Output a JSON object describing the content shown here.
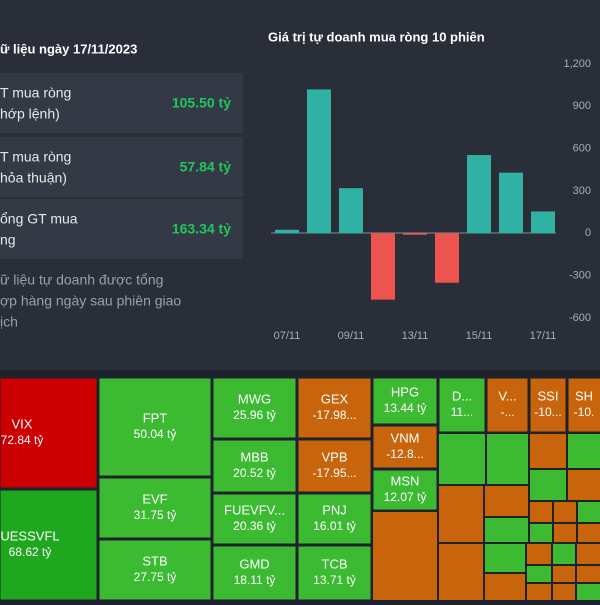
{
  "summary": {
    "title": "ữ liệu ngày 17/11/2023",
    "rows": [
      {
        "label": [
          "T mua ròng",
          "hớp lệnh)"
        ],
        "value": "105.50 tỷ"
      },
      {
        "label": [
          "T mua ròng",
          "hỏa thuận)"
        ],
        "value": "57.84 tỷ"
      },
      {
        "label": [
          "ổng GT mua",
          "ng"
        ],
        "value": "163.34 tỷ"
      }
    ],
    "note": [
      "ữ liệu tự doanh được tổng",
      "ợp hàng ngày sau phiên giao",
      "ịch"
    ]
  },
  "chart_data": {
    "type": "bar",
    "title": "Giá trị tự doanh mua ròng 10 phiên",
    "categories": [
      "07/11",
      null,
      "09/11",
      null,
      "13/11",
      null,
      "15/11",
      null,
      "17/11"
    ],
    "values": [
      25,
      1020,
      320,
      -470,
      -10,
      -350,
      555,
      430,
      155
    ],
    "up_color": "#2fb1a3",
    "down_color": "#ef5350",
    "ylim": [
      -600,
      1200
    ],
    "yticks": [
      -600,
      -300,
      0,
      300,
      600,
      900,
      {
        "value": 1200,
        "label": "1,200"
      }
    ],
    "grid": false
  },
  "treemap": {
    "tiles": [
      {
        "name": "VIX",
        "value": "72.84 tỷ",
        "color": "#cc0000"
      },
      {
        "name": "UESSVFL",
        "value": "68.62 tỷ",
        "color": "#1fa81f"
      },
      {
        "name": "FPT",
        "value": "50.04 tỷ",
        "color": "#3cbb32"
      },
      {
        "name": "EVF",
        "value": "31.75 tỷ",
        "color": "#3cbb32"
      },
      {
        "name": "STB",
        "value": "27.75 tỷ",
        "color": "#3cbb32"
      },
      {
        "name": "MWG",
        "value": "25.96 tỷ",
        "color": "#3cbb32"
      },
      {
        "name": "MBB",
        "value": "20.52 tỷ",
        "color": "#3cbb32"
      },
      {
        "name": "FUEVFV...",
        "value": "20.36 tỷ",
        "color": "#3cbb32"
      },
      {
        "name": "GMD",
        "value": "18.11 tỷ",
        "color": "#3cbb32"
      },
      {
        "name": "GEX",
        "value": "-17.98...",
        "color": "#c8650c"
      },
      {
        "name": "VPB",
        "value": "-17.95...",
        "color": "#c8650c"
      },
      {
        "name": "PNJ",
        "value": "16.01 tỷ",
        "color": "#3cbb32"
      },
      {
        "name": "TCB",
        "value": "13.71 tỷ",
        "color": "#3cbb32"
      },
      {
        "name": "HPG",
        "value": "13.44 tỷ",
        "color": "#3cbb32"
      },
      {
        "name": "VNM",
        "value": "-12.8...",
        "color": "#c8650c"
      },
      {
        "name": "MSN",
        "value": "12.07 tỷ",
        "color": "#3cbb32"
      },
      {
        "name": "D...",
        "value": "11...",
        "color": "#3cbb32"
      },
      {
        "name": "V...",
        "value": "-...",
        "color": "#c8650c"
      },
      {
        "name": "SSI",
        "value": "-10...",
        "color": "#c8650c"
      },
      {
        "name": "SH",
        "value": "-10.",
        "color": "#c8650c"
      }
    ]
  }
}
